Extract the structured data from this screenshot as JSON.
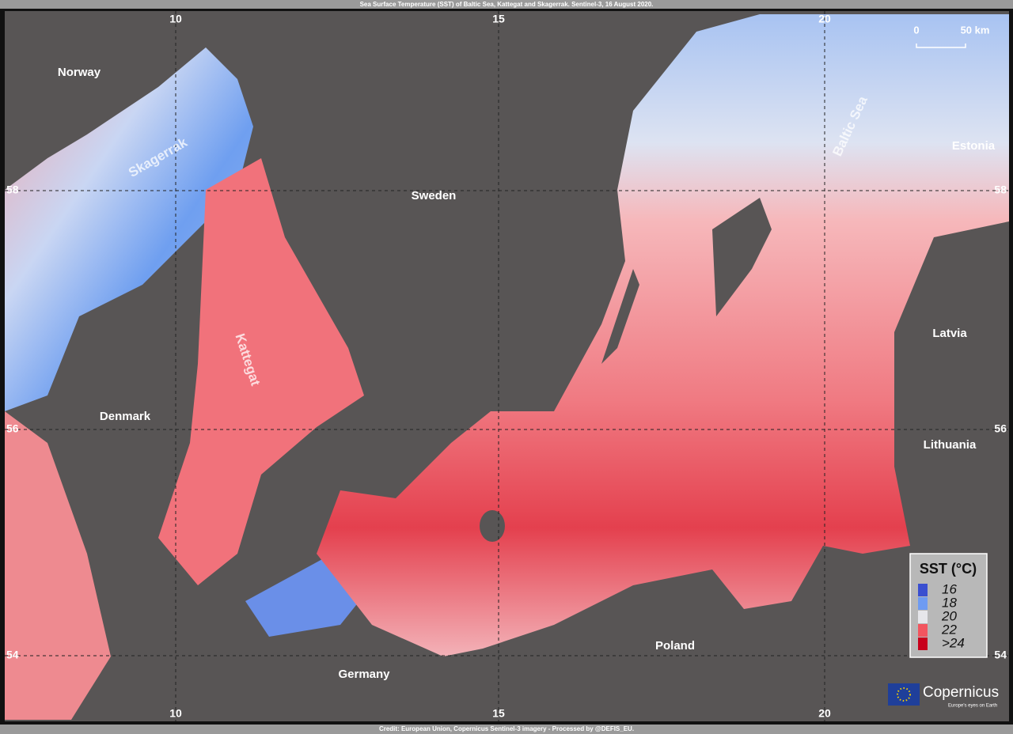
{
  "header": {
    "title": "Sea Surface Temperature (SST) of Baltic Sea, Kattegat and Skagerrak.  Sentinel-3,  16 August 2020."
  },
  "footer": {
    "credit": "Credit: European Union, Copernicus Sentinel-3 imagery - Processed by @DEFIS_EU."
  },
  "graticule": {
    "longitudes": [
      10,
      15,
      20
    ],
    "latitudes": [
      58,
      56,
      54
    ]
  },
  "places": [
    "Norway",
    "Sweden",
    "Denmark",
    "Estonia",
    "Latvia",
    "Lithuania",
    "Poland",
    "Germany"
  ],
  "seas": [
    "Skagerrak",
    "Kattegat",
    "Baltic Sea"
  ],
  "scale_bar": {
    "start": "0",
    "end": "50 km"
  },
  "legend": {
    "title": "SST (°C)",
    "items": [
      {
        "label": "16",
        "color": "#3a4fd0"
      },
      {
        "label": "18",
        "color": "#6e9bf2"
      },
      {
        "label": "20",
        "color": "#e6e6ea"
      },
      {
        "label": "22",
        "color": "#f2555f"
      },
      {
        "label": ">24",
        "color": "#c8001b"
      }
    ]
  },
  "logo": {
    "name": "Copernicus",
    "tagline": "Europe's eyes on Earth"
  }
}
